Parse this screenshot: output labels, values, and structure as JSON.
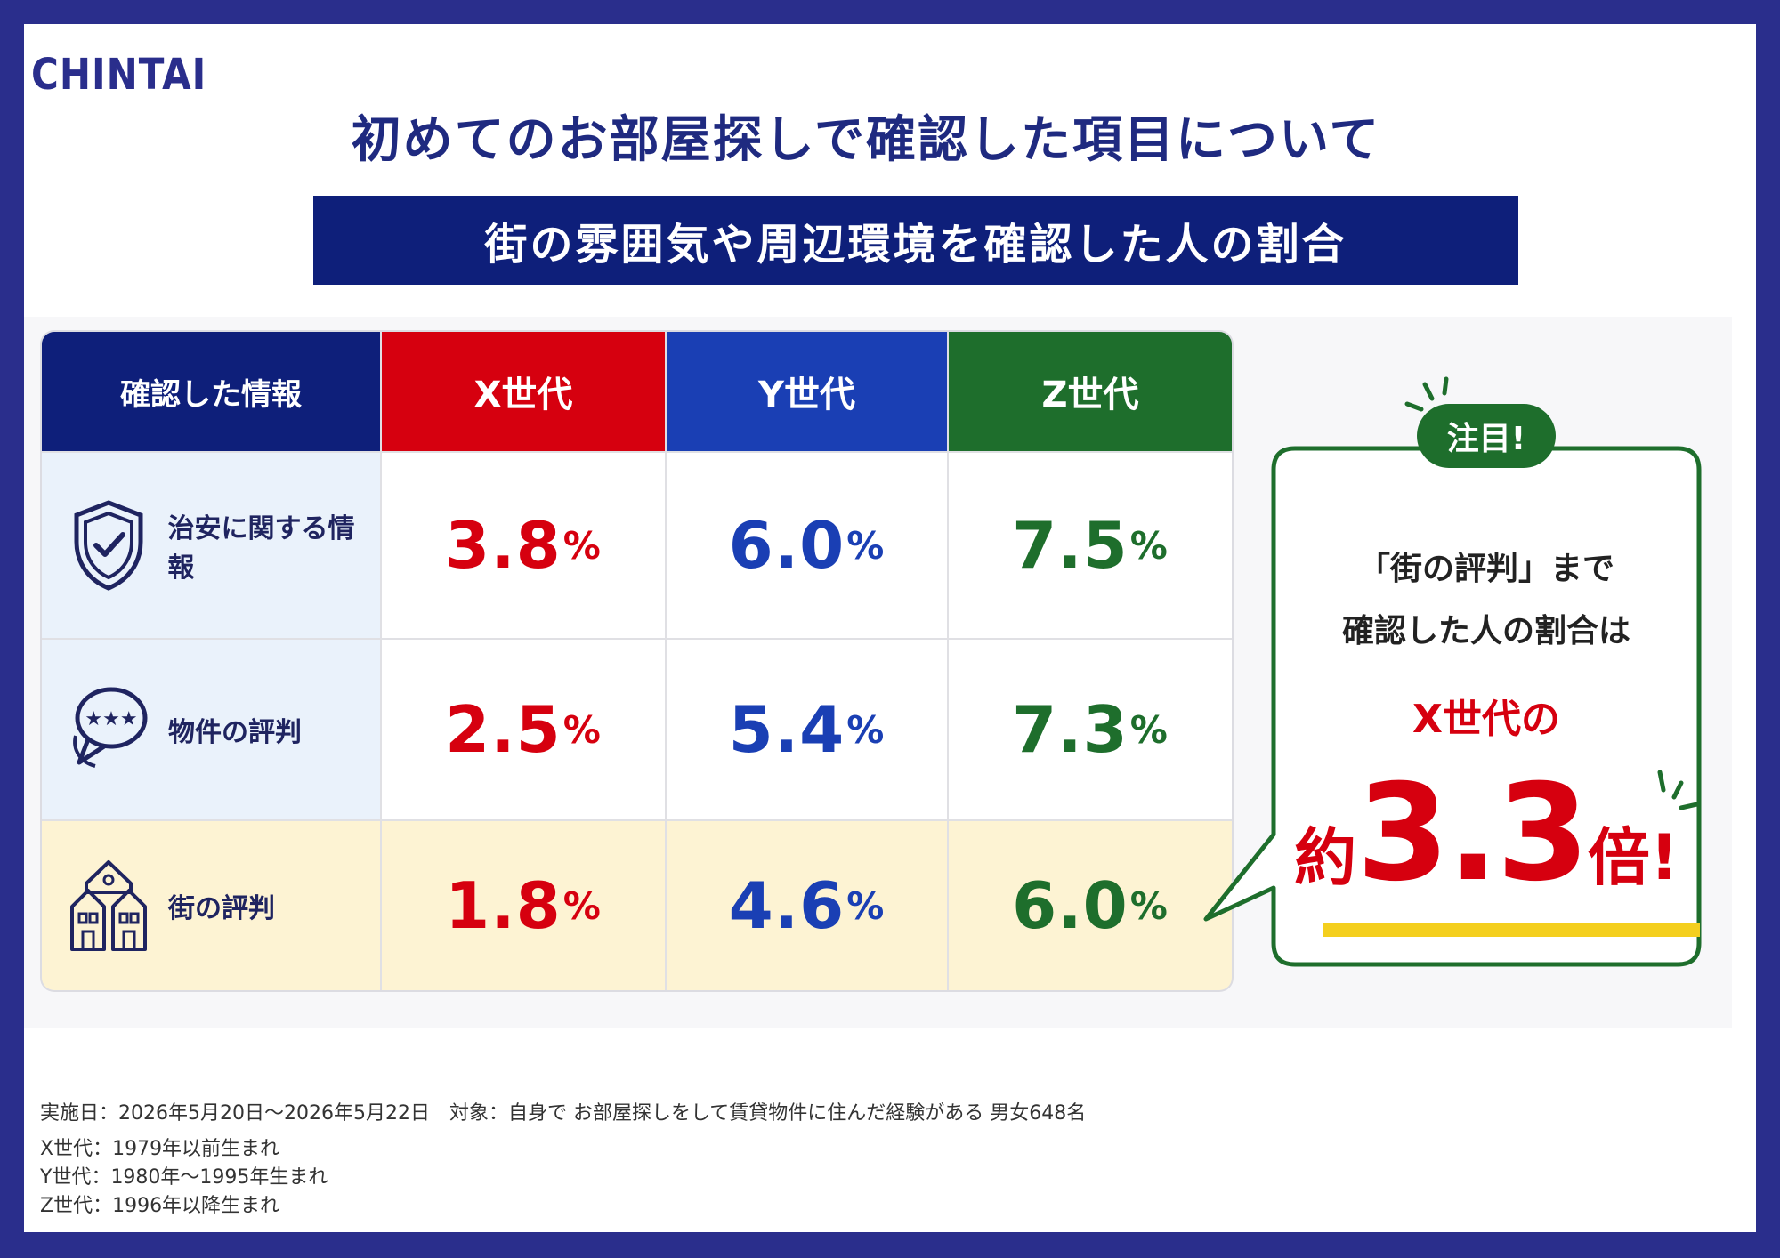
{
  "logo": "CHINTAI",
  "title": "初めてのお部屋探しで確認した項目について",
  "subtitle": "街の雰囲気や周辺環境を確認した人の割合",
  "table": {
    "header_label": "確認した情報",
    "columns": [
      "X世代",
      "Y世代",
      "Z世代"
    ],
    "rows": [
      {
        "label": "治安に関する情報",
        "icon": "shield-check-icon",
        "values": [
          "3.8",
          "6.0",
          "7.5"
        ]
      },
      {
        "label": "物件の評判",
        "icon": "speech-bubble-stars-icon",
        "values": [
          "2.5",
          "5.4",
          "7.3"
        ]
      },
      {
        "label": "街の評判",
        "icon": "houses-icon",
        "values": [
          "1.8",
          "4.6",
          "6.0"
        ]
      }
    ],
    "unit": "%"
  },
  "callout": {
    "badge": "注目!",
    "line1": "「街の評判」まで",
    "line2": "確認した人の割合は",
    "line3": "X世代の",
    "prefix": "約",
    "number": "3.3",
    "suffix": "倍!"
  },
  "footer": {
    "survey": "実施日：2026年5月20日〜2026年5月22日　対象：自身で お部屋探しをして賃貸物件に住んだ経験がある 男女648名",
    "x_def": "X世代：1979年以前生まれ",
    "y_def": "Y世代：1980年〜1995年生まれ",
    "z_def": "Z世代：1996年以降生まれ"
  },
  "colors": {
    "frame": "#2a2e8c",
    "navy": "#0e1f7a",
    "x": "#d6000f",
    "y": "#1a3fb4",
    "z": "#1e6e2c",
    "highlight_row": "#fdf3d3",
    "label_bg": "#eaf2fb"
  }
}
